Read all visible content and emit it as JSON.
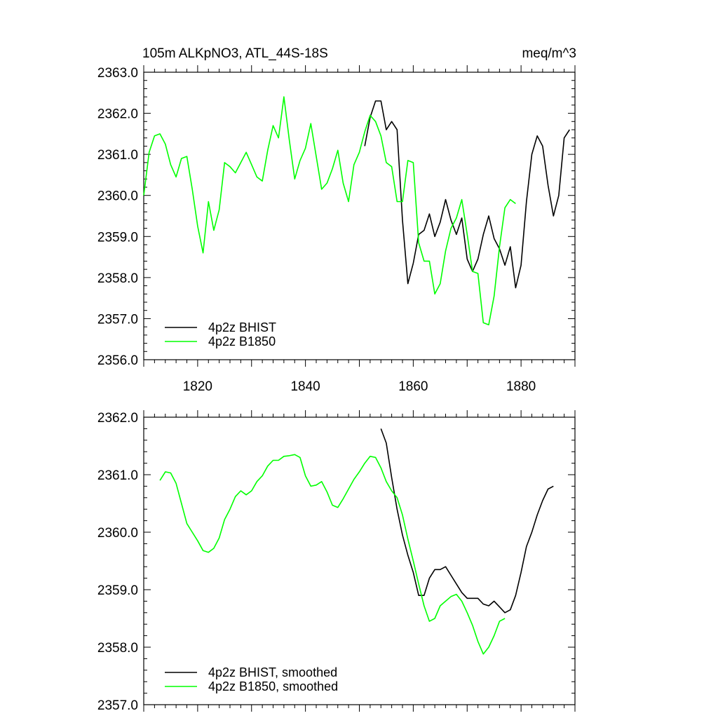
{
  "chart_data": [
    {
      "type": "line",
      "title": "105m ALKpNO3, ATL_44S-18S",
      "units": "meq/m^3",
      "xlim": [
        1810,
        1890
      ],
      "ylim": [
        2356,
        2363
      ],
      "yticks": [
        2356,
        2357,
        2358,
        2359,
        2360,
        2361,
        2362,
        2363
      ],
      "ytick_labels": [
        "2356.0",
        "2357.0",
        "2358.0",
        "2359.0",
        "2360.0",
        "2361.0",
        "2362.0",
        "2363.0"
      ],
      "xticks": [
        1820,
        1840,
        1860,
        1880
      ],
      "xtick_labels": [
        "1820",
        "1840",
        "1860",
        "1880"
      ],
      "legend_position": "bottom-left",
      "series": [
        {
          "name": "4p2z BHIST",
          "color": "#000000",
          "x": [
            1851,
            1852,
            1853,
            1854,
            1855,
            1856,
            1857,
            1858,
            1859,
            1860,
            1861,
            1862,
            1863,
            1864,
            1865,
            1866,
            1867,
            1868,
            1869,
            1870,
            1871,
            1872,
            1873,
            1874,
            1875,
            1876,
            1877,
            1878,
            1879,
            1880,
            1881,
            1882,
            1883,
            1884,
            1885,
            1886,
            1887,
            1888,
            1889
          ],
          "y": [
            2361.2,
            2361.9,
            2362.3,
            2362.3,
            2361.6,
            2361.8,
            2361.6,
            2359.4,
            2357.85,
            2358.35,
            2359.05,
            2359.15,
            2359.55,
            2359.0,
            2359.35,
            2359.9,
            2359.4,
            2359.05,
            2359.45,
            2358.45,
            2358.15,
            2358.45,
            2359.05,
            2359.5,
            2358.95,
            2358.7,
            2358.3,
            2358.75,
            2357.75,
            2358.3,
            2359.85,
            2361.0,
            2361.45,
            2361.2,
            2360.25,
            2359.5,
            2360.0,
            2361.4,
            2361.6
          ]
        },
        {
          "name": "4p2z B1850",
          "color": "#00ff00",
          "x": [
            1810,
            1811,
            1812,
            1813,
            1814,
            1815,
            1816,
            1817,
            1818,
            1819,
            1820,
            1821,
            1822,
            1823,
            1824,
            1825,
            1826,
            1827,
            1828,
            1829,
            1830,
            1831,
            1832,
            1833,
            1834,
            1835,
            1836,
            1837,
            1838,
            1839,
            1840,
            1841,
            1842,
            1843,
            1844,
            1845,
            1846,
            1847,
            1848,
            1849,
            1850,
            1851,
            1852,
            1853,
            1854,
            1855,
            1856,
            1857,
            1858,
            1859,
            1860,
            1861,
            1862,
            1863,
            1864,
            1865,
            1866,
            1867,
            1868,
            1869,
            1870,
            1871,
            1872,
            1873,
            1874,
            1875,
            1876,
            1877,
            1878,
            1879
          ],
          "y": [
            2360.0,
            2361.05,
            2361.45,
            2361.5,
            2361.25,
            2360.75,
            2360.45,
            2360.9,
            2360.95,
            2360.15,
            2359.25,
            2358.6,
            2359.85,
            2359.15,
            2359.65,
            2360.8,
            2360.7,
            2360.55,
            2360.8,
            2361.05,
            2360.75,
            2360.45,
            2360.35,
            2361.1,
            2361.7,
            2361.4,
            2362.4,
            2361.35,
            2360.4,
            2360.85,
            2361.15,
            2361.75,
            2360.95,
            2360.15,
            2360.3,
            2360.65,
            2361.1,
            2360.3,
            2359.85,
            2360.75,
            2361.05,
            2361.55,
            2361.95,
            2361.8,
            2361.45,
            2360.8,
            2360.7,
            2359.85,
            2359.85,
            2360.85,
            2360.8,
            2358.85,
            2358.4,
            2358.4,
            2357.6,
            2357.85,
            2358.65,
            2359.2,
            2359.45,
            2359.9,
            2359.05,
            2358.15,
            2358.1,
            2356.9,
            2356.85,
            2357.55,
            2358.75,
            2359.7,
            2359.9,
            2359.8
          ]
        }
      ]
    },
    {
      "type": "line",
      "xlim": [
        1810,
        1890
      ],
      "ylim": [
        2357,
        2362
      ],
      "yticks": [
        2357,
        2358,
        2359,
        2360,
        2361,
        2362
      ],
      "ytick_labels": [
        "2357.0",
        "2358.0",
        "2359.0",
        "2360.0",
        "2361.0",
        "2362.0"
      ],
      "xticks": [
        1820,
        1840,
        1860,
        1880
      ],
      "legend_position": "bottom-left",
      "series": [
        {
          "name": "4p2z BHIST, smoothed",
          "color": "#000000",
          "x": [
            1854,
            1855,
            1856,
            1857,
            1858,
            1859,
            1860,
            1861,
            1862,
            1863,
            1864,
            1865,
            1866,
            1867,
            1868,
            1869,
            1870,
            1871,
            1872,
            1873,
            1874,
            1875,
            1876,
            1877,
            1878,
            1879,
            1880,
            1881,
            1882,
            1883,
            1884,
            1885,
            1886
          ],
          "y": [
            2361.8,
            2361.55,
            2360.95,
            2360.4,
            2359.95,
            2359.6,
            2359.3,
            2358.9,
            2358.9,
            2359.2,
            2359.35,
            2359.35,
            2359.4,
            2359.25,
            2359.1,
            2358.95,
            2358.85,
            2358.85,
            2358.85,
            2358.75,
            2358.72,
            2358.8,
            2358.7,
            2358.6,
            2358.65,
            2358.9,
            2359.3,
            2359.75,
            2360.0,
            2360.3,
            2360.55,
            2360.75,
            2360.8
          ]
        },
        {
          "name": "4p2z B1850, smoothed",
          "color": "#00ff00",
          "x": [
            1813,
            1814,
            1815,
            1816,
            1817,
            1818,
            1819,
            1820,
            1821,
            1822,
            1823,
            1824,
            1825,
            1826,
            1827,
            1828,
            1829,
            1830,
            1831,
            1832,
            1833,
            1834,
            1835,
            1836,
            1837,
            1838,
            1839,
            1840,
            1841,
            1842,
            1843,
            1844,
            1845,
            1846,
            1847,
            1848,
            1849,
            1850,
            1851,
            1852,
            1853,
            1854,
            1855,
            1856,
            1857,
            1858,
            1859,
            1860,
            1861,
            1862,
            1863,
            1864,
            1865,
            1866,
            1867,
            1868,
            1869,
            1870,
            1871,
            1872,
            1873,
            1874,
            1875,
            1876,
            1877
          ],
          "y": [
            2360.9,
            2361.05,
            2361.03,
            2360.85,
            2360.5,
            2360.15,
            2360.0,
            2359.85,
            2359.68,
            2359.65,
            2359.72,
            2359.9,
            2360.22,
            2360.4,
            2360.62,
            2360.72,
            2360.65,
            2360.72,
            2360.88,
            2360.98,
            2361.15,
            2361.25,
            2361.25,
            2361.32,
            2361.33,
            2361.35,
            2361.3,
            2360.98,
            2360.8,
            2360.82,
            2360.88,
            2360.7,
            2360.47,
            2360.43,
            2360.58,
            2360.75,
            2360.92,
            2361.05,
            2361.2,
            2361.32,
            2361.3,
            2361.12,
            2360.88,
            2360.72,
            2360.6,
            2360.3,
            2359.88,
            2359.5,
            2359.1,
            2358.72,
            2358.45,
            2358.5,
            2358.72,
            2358.8,
            2358.88,
            2358.92,
            2358.8,
            2358.6,
            2358.38,
            2358.1,
            2357.88,
            2358.0,
            2358.2,
            2358.45,
            2358.5
          ]
        }
      ]
    }
  ]
}
